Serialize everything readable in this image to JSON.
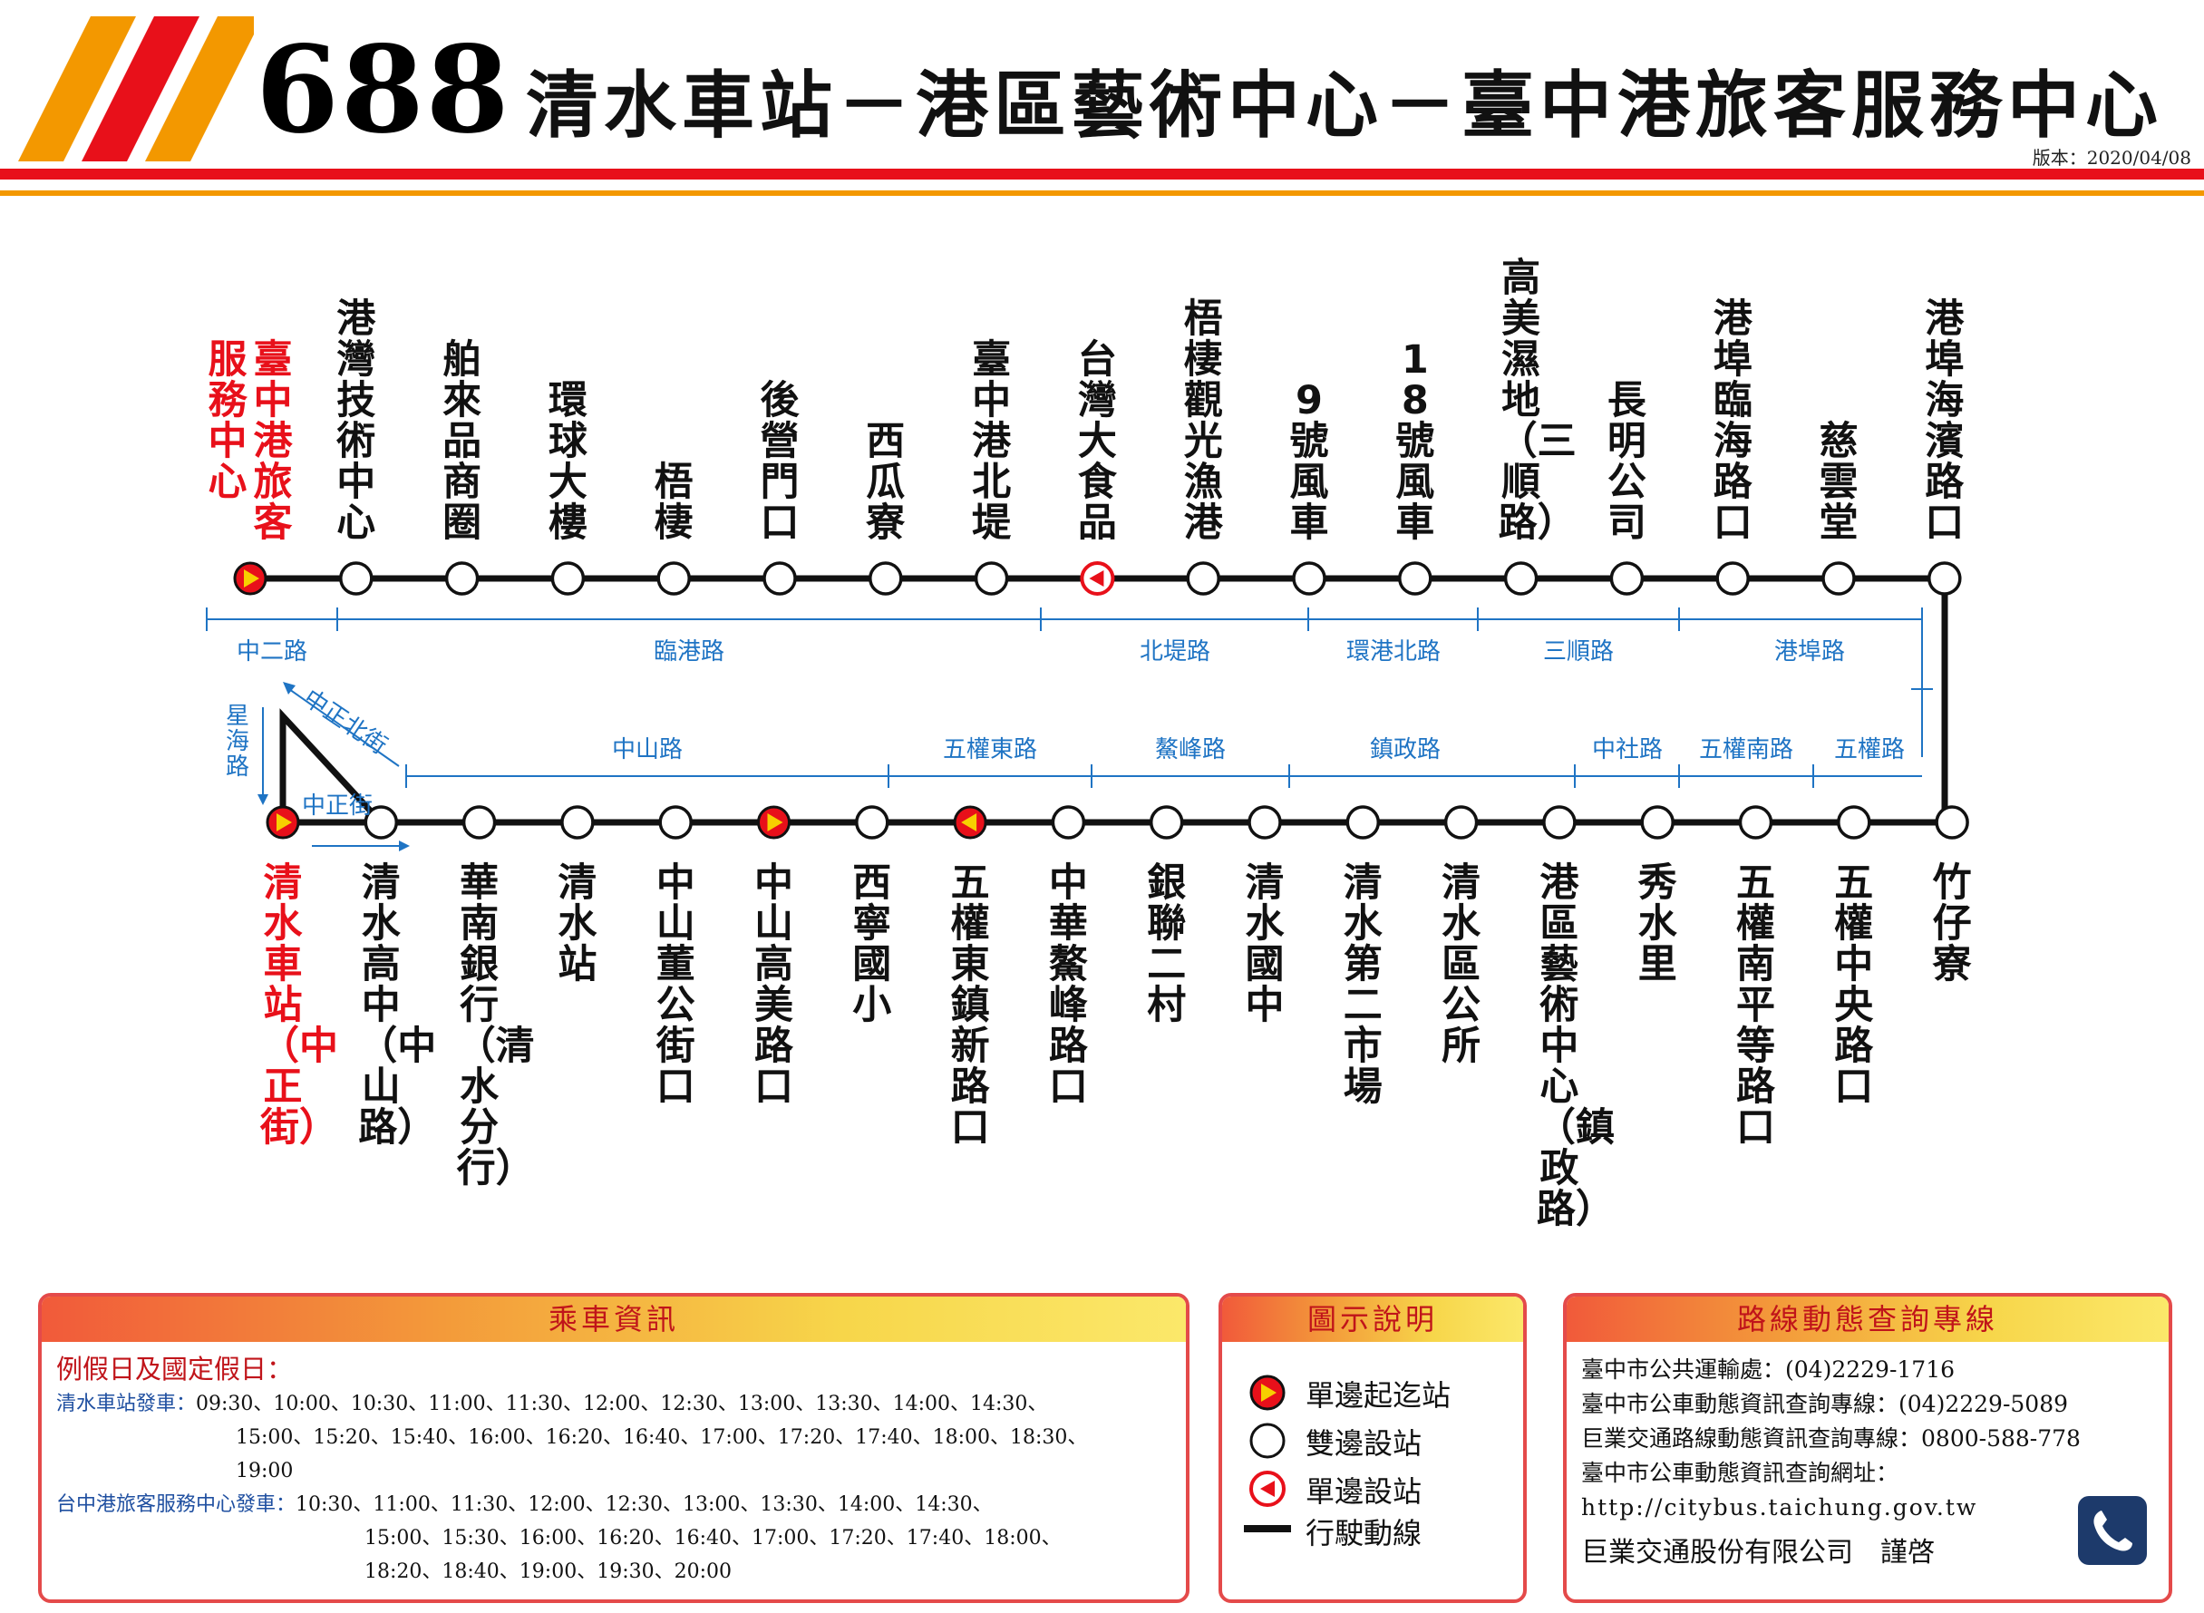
{
  "header": {
    "route_number": "688",
    "title": "清水車站－港區藝術中心－臺中港旅客服務中心",
    "version": "版本：2020/04/08",
    "colors": {
      "stripe_red": "#e8101a",
      "stripe_orange": "#f39800",
      "station_red": "#e8101a",
      "road_blue": "#1f74c4"
    }
  },
  "top_row": [
    {
      "name": "臺中港旅客服務中心",
      "columns": [
        "臺中港旅客",
        "服務中心"
      ],
      "type": "terminal",
      "highlight": true
    },
    {
      "name": "港灣技術中心",
      "type": "both"
    },
    {
      "name": "舶來品商圈",
      "type": "both"
    },
    {
      "name": "環球大樓",
      "type": "both"
    },
    {
      "name": "梧棲",
      "type": "both"
    },
    {
      "name": "後營門口",
      "type": "both"
    },
    {
      "name": "西瓜寮",
      "type": "both"
    },
    {
      "name": "臺中港北堤",
      "type": "both"
    },
    {
      "name": "台灣大食品",
      "type": "oneway"
    },
    {
      "name": "梧棲觀光漁港",
      "type": "both"
    },
    {
      "name": "9號風車",
      "type": "both"
    },
    {
      "name": "18號風車",
      "type": "both"
    },
    {
      "name": "高美濕地（三順路）",
      "type": "both"
    },
    {
      "name": "長明公司",
      "type": "both"
    },
    {
      "name": "港埠臨海路口",
      "type": "both"
    },
    {
      "name": "慈雲堂",
      "type": "both"
    },
    {
      "name": "港埠海濱路口",
      "type": "both"
    }
  ],
  "bottom_row": [
    {
      "name": "清水車站（中正街）",
      "type": "terminal",
      "highlight": true
    },
    {
      "name": "清水高中（中山路）",
      "type": "both"
    },
    {
      "name": "華南銀行（清水分行）",
      "type": "both"
    },
    {
      "name": "清水站",
      "type": "both"
    },
    {
      "name": "中山董公街口",
      "type": "both"
    },
    {
      "name": "中山高美路口",
      "type": "terminal"
    },
    {
      "name": "西寧國小",
      "type": "both"
    },
    {
      "name": "五權東鎮新路口",
      "type": "terminal-left"
    },
    {
      "name": "中華鰲峰路口",
      "type": "both"
    },
    {
      "name": "銀聯二村",
      "type": "both"
    },
    {
      "name": "清水國中",
      "type": "both"
    },
    {
      "name": "清水第二市場",
      "type": "both"
    },
    {
      "name": "清水區公所",
      "type": "both"
    },
    {
      "name": "港區藝術中心（鎮政路）",
      "type": "both"
    },
    {
      "name": "秀水里",
      "type": "both"
    },
    {
      "name": "五權南平等路口",
      "type": "both"
    },
    {
      "name": "五權中央路口",
      "type": "both"
    },
    {
      "name": "竹仔寮",
      "type": "both"
    }
  ],
  "roads_top": [
    "中二路",
    "臨港路",
    "北堤路",
    "環港北路",
    "三順路",
    "港埠路"
  ],
  "roads_bottom": [
    "中山路",
    "五權東路",
    "鰲峰路",
    "鎮政路",
    "中社路",
    "五權南路",
    "五權路"
  ],
  "roads_loop": {
    "left": "星海路",
    "diagonal": "中正北街",
    "bottom": "中正街"
  },
  "info_panel": {
    "title": "乘車資訊",
    "subtitle": "例假日及國定假日：",
    "qs_label": "清水車站發車：",
    "qs_lines": [
      "09:30、10:00、10:30、11:00、11:30、12:00、12:30、13:00、13:30、14:00、14:30、",
      "15:00、15:20、15:40、16:00、16:20、16:40、17:00、17:20、17:40、18:00、18:30、",
      "19:00"
    ],
    "tc_label": "台中港旅客服務中心發車：",
    "tc_lines": [
      "10:30、11:00、11:30、12:00、12:30、13:00、13:30、14:00、14:30、",
      "15:00、15:30、16:00、16:20、16:40、17:00、17:20、17:40、18:00、",
      "18:20、18:40、19:00、19:30、20:00"
    ]
  },
  "legend_panel": {
    "title": "圖示說明",
    "items": [
      {
        "icon": "terminal-stop-icon",
        "label": "單邊起迄站"
      },
      {
        "icon": "two-way-stop-icon",
        "label": "雙邊設站"
      },
      {
        "icon": "one-way-stop-icon",
        "label": "單邊設站"
      },
      {
        "icon": "route-line-icon",
        "label": "行駛動線"
      }
    ]
  },
  "contact_panel": {
    "title": "路線動態查詢專線",
    "lines": [
      "臺中市公共運輸處：(04)2229-1716",
      "臺中市公車動態資訊查詢專線：(04)2229-5089",
      "巨業交通路線動態資訊查詢專線：0800-588-778",
      "臺中市公車動態資訊查詢網址：",
      "http://citybus.taichung.gov.tw"
    ],
    "signature": "巨業交通股份有限公司　謹啓",
    "icon": "phone-icon"
  }
}
